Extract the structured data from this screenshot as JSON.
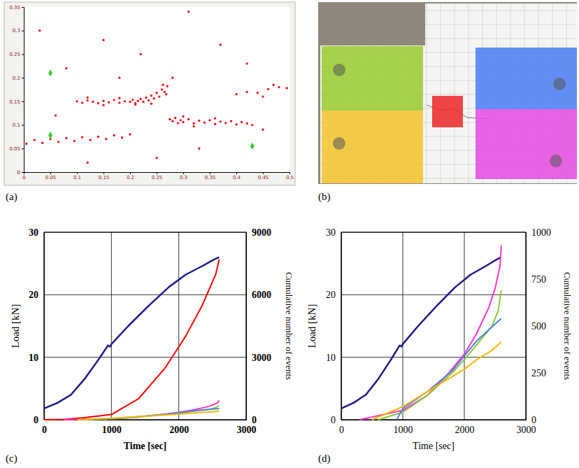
{
  "chart_data": [
    {
      "type": "scatter",
      "label": "(a)",
      "xlim": [
        0,
        0.5
      ],
      "xticks": [
        0,
        0.05,
        0.1,
        0.15,
        0.2,
        0.25,
        0.3,
        0.35,
        0.4,
        0.45,
        0.5
      ],
      "ylim": [
        0,
        0.35
      ],
      "yticks": [
        0,
        0.05,
        0.1,
        0.15,
        0.2,
        0.25,
        0.3,
        0.35
      ],
      "series": [
        {
          "color": "#e8141e",
          "marker": "circle",
          "x": [
            0.1,
            0.11,
            0.12,
            0.13,
            0.14,
            0.15,
            0.16,
            0.17,
            0.18,
            0.19,
            0.2,
            0.205,
            0.21,
            0.215,
            0.22,
            0.225,
            0.23,
            0.235,
            0.24,
            0.245,
            0.25,
            0.255,
            0.26,
            0.265,
            0.27,
            0.268,
            0.262,
            0.12,
            0.15,
            0.18,
            0.21,
            0.24,
            0.275,
            0.28,
            0.285,
            0.29,
            0.295,
            0.3,
            0.31,
            0.32,
            0.33,
            0.34,
            0.35,
            0.36,
            0.37,
            0.38,
            0.39,
            0.4,
            0.41,
            0.42,
            0.43,
            0.3,
            0.32,
            0.36,
            0.005,
            0.02,
            0.035,
            0.05,
            0.065,
            0.08,
            0.095,
            0.11,
            0.125,
            0.14,
            0.155,
            0.17,
            0.185,
            0.2,
            0.4,
            0.42,
            0.44,
            0.46,
            0.48,
            0.495,
            0.45,
            0.47,
            0.03,
            0.08,
            0.15,
            0.22,
            0.28,
            0.33,
            0.37,
            0.42,
            0.06,
            0.25,
            0.45,
            0.18,
            0.31,
            0.12
          ],
          "values": [
            0.15,
            0.147,
            0.152,
            0.149,
            0.146,
            0.151,
            0.148,
            0.153,
            0.147,
            0.15,
            0.149,
            0.153,
            0.146,
            0.151,
            0.155,
            0.149,
            0.158,
            0.152,
            0.162,
            0.156,
            0.168,
            0.16,
            0.175,
            0.17,
            0.182,
            0.165,
            0.185,
            0.158,
            0.142,
            0.157,
            0.143,
            0.145,
            0.112,
            0.108,
            0.115,
            0.104,
            0.11,
            0.106,
            0.112,
            0.103,
            0.109,
            0.105,
            0.11,
            0.102,
            0.107,
            0.104,
            0.108,
            0.101,
            0.106,
            0.103,
            0.1,
            0.118,
            0.097,
            0.114,
            0.06,
            0.068,
            0.062,
            0.07,
            0.064,
            0.072,
            0.066,
            0.074,
            0.068,
            0.075,
            0.07,
            0.078,
            0.073,
            0.08,
            0.165,
            0.17,
            0.168,
            0.176,
            0.18,
            0.178,
            0.16,
            0.185,
            0.3,
            0.22,
            0.28,
            0.25,
            0.2,
            0.05,
            0.27,
            0.23,
            0.12,
            0.03,
            0.09,
            0.2,
            0.34,
            0.02
          ]
        },
        {
          "color": "#33cc33",
          "marker": "diamond",
          "x": [
            0.05,
            0.05,
            0.43
          ],
          "values": [
            0.21,
            0.078,
            0.055
          ]
        }
      ]
    },
    {
      "type": "image",
      "label": "(b)",
      "regions": [
        {
          "color": "#9acd32"
        },
        {
          "color": "#f2c531"
        },
        {
          "color": "#4f7ff2"
        },
        {
          "color": "#e44ee0"
        },
        {
          "color": "#ec2c2c"
        }
      ]
    },
    {
      "type": "line",
      "label": "(c)",
      "grid": true,
      "xlabel": "Time [sec]",
      "ylabel": "Load [kN]",
      "y2label": "Cumulative number of events",
      "xlim": [
        0,
        3000
      ],
      "xticks": [
        0,
        1000,
        2000,
        3000
      ],
      "ylim": [
        0,
        30
      ],
      "yticks": [
        0,
        10,
        20,
        30
      ],
      "y2lim": [
        0,
        9000
      ],
      "y2ticks": [
        0,
        3000,
        6000,
        9000
      ],
      "series": [
        {
          "color": "#1a1a80",
          "x": [
            0,
            200,
            400,
            600,
            800,
            950,
            980,
            1000,
            1250,
            1550,
            1850,
            2100,
            2350,
            2500,
            2600
          ],
          "values": [
            1.8,
            2.7,
            4.0,
            6.5,
            9.5,
            11.9,
            11.7,
            12.1,
            15,
            18.2,
            21.2,
            23.2,
            24.6,
            25.5,
            26.0
          ]
        },
        {
          "color": "#ff0000",
          "axis": "y2",
          "x": [
            0,
            300,
            600,
            1000,
            1400,
            1800,
            2100,
            2350,
            2550,
            2600
          ],
          "values": [
            0,
            20,
            100,
            250,
            1000,
            2500,
            4000,
            5500,
            7000,
            7700
          ]
        },
        {
          "color": "#ff33cc",
          "axis": "y2",
          "x": [
            300,
            1000,
            1400,
            1750,
            2000,
            2200,
            2400,
            2500,
            2580,
            2600
          ],
          "values": [
            0,
            50,
            130,
            250,
            350,
            460,
            600,
            700,
            820,
            930
          ]
        },
        {
          "color": "#8cc43c",
          "axis": "y2",
          "x": [
            600,
            1000,
            1400,
            1800,
            2000,
            2200,
            2450,
            2550,
            2600
          ],
          "values": [
            0,
            40,
            130,
            250,
            320,
            400,
            500,
            580,
            690
          ]
        },
        {
          "color": "#4f81e0",
          "axis": "y2",
          "x": [
            900,
            1000,
            1400,
            1800,
            2000,
            2200,
            2400,
            2600
          ],
          "values": [
            0,
            60,
            150,
            260,
            340,
            420,
            480,
            540
          ]
        },
        {
          "color": "#f5b800",
          "axis": "y2",
          "x": [
            500,
            1000,
            1400,
            1800,
            2000,
            2200,
            2450,
            2600
          ],
          "values": [
            0,
            70,
            150,
            230,
            270,
            320,
            370,
            415
          ]
        }
      ]
    },
    {
      "type": "line",
      "label": "(d)",
      "grid": true,
      "xlabel": "Time [sec]",
      "ylabel": "Load [kN]",
      "y2label": "Cumulative number of events",
      "xlim": [
        0,
        3000
      ],
      "xticks": [
        0,
        1000,
        2000,
        3000
      ],
      "ylim": [
        0,
        30
      ],
      "yticks": [
        0,
        10,
        20,
        30
      ],
      "y2lim": [
        0,
        1000
      ],
      "y2ticks": [
        0,
        250,
        500,
        750,
        1000
      ],
      "series": [
        {
          "color": "#1a1a80",
          "x": [
            0,
            200,
            400,
            600,
            800,
            950,
            980,
            1000,
            1250,
            1550,
            1850,
            2100,
            2350,
            2500,
            2600
          ],
          "values": [
            1.8,
            2.7,
            4.0,
            6.5,
            9.5,
            11.9,
            11.7,
            12.1,
            15,
            18.2,
            21.2,
            23.2,
            24.6,
            25.5,
            26.0
          ]
        },
        {
          "color": "#ff33cc",
          "axis": "y2",
          "x": [
            300,
            1000,
            1400,
            1750,
            2000,
            2200,
            2400,
            2500,
            2580,
            2600
          ],
          "values": [
            0,
            50,
            130,
            250,
            350,
            460,
            600,
            700,
            820,
            930
          ]
        },
        {
          "color": "#8cc43c",
          "axis": "y2",
          "x": [
            600,
            1000,
            1400,
            1800,
            2000,
            2200,
            2450,
            2550,
            2600
          ],
          "values": [
            0,
            40,
            130,
            250,
            320,
            400,
            500,
            580,
            690
          ]
        },
        {
          "color": "#4f81e0",
          "axis": "y2",
          "x": [
            900,
            1000,
            1400,
            1800,
            2000,
            2200,
            2400,
            2600
          ],
          "values": [
            0,
            60,
            150,
            260,
            340,
            420,
            480,
            540
          ]
        },
        {
          "color": "#f5b800",
          "axis": "y2",
          "x": [
            500,
            1000,
            1400,
            1800,
            2000,
            2200,
            2450,
            2600
          ],
          "values": [
            0,
            70,
            150,
            230,
            270,
            320,
            370,
            415
          ]
        }
      ]
    }
  ]
}
